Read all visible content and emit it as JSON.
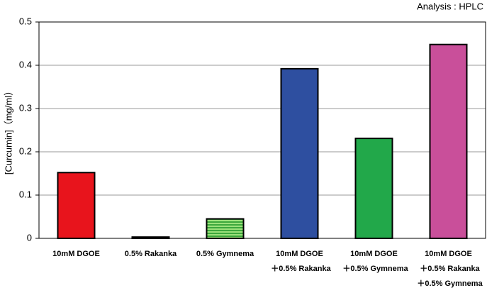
{
  "chart_data": {
    "type": "bar",
    "annotation": "Analysis : HPLC",
    "y_label": "[Curcumin]（mg/ml）",
    "categories": [
      [
        "10mM DGOE"
      ],
      [
        "0.5% Rakanka"
      ],
      [
        "0.5% Gymnema"
      ],
      [
        "10mM DGOE",
        "＋0.5% Rakanka"
      ],
      [
        "10mM DGOE",
        "＋0.5% Gymnema"
      ],
      [
        "10mM DGOE",
        "＋0.5% Rakanka",
        "＋0.5% Gymnema"
      ]
    ],
    "values": [
      0.152,
      0.003,
      0.045,
      0.392,
      0.231,
      0.448
    ],
    "colors": [
      "#e8141c",
      "#333333",
      "#4cb84c",
      "#2e4fa0",
      "#22a84a",
      "#c94f9a"
    ],
    "hatch": [
      null,
      null,
      "horizontal",
      null,
      null,
      null
    ],
    "ylim": [
      0,
      0.5
    ],
    "yticks": [
      0,
      0.1,
      0.2,
      0.3,
      0.4,
      0.5
    ],
    "grid": true
  }
}
